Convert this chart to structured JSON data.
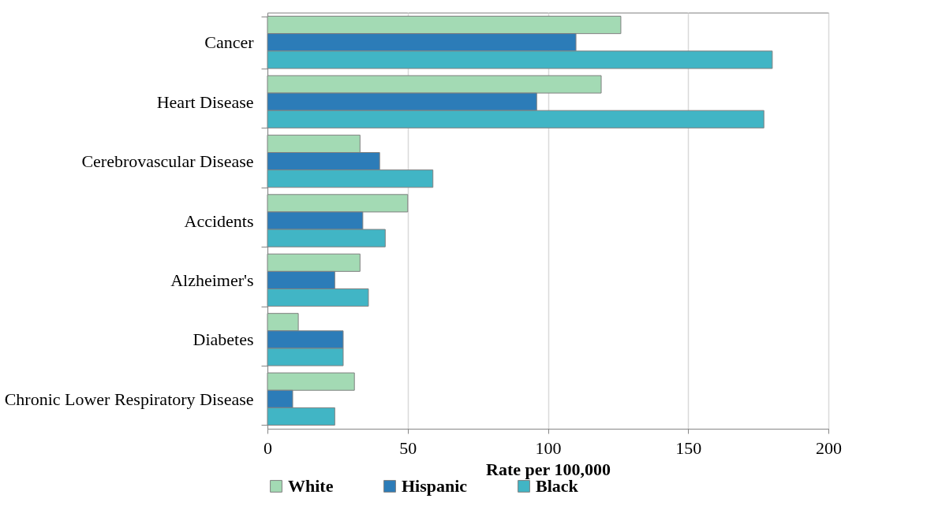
{
  "chart_data": {
    "type": "bar",
    "orientation": "horizontal",
    "xlabel": "Rate per 100,000",
    "categories": [
      "Cancer",
      "Heart Disease",
      "Cerebrovascular Disease",
      "Accidents",
      "Alzheimer's ",
      "Diabetes",
      "Chronic Lower Respiratory Disease"
    ],
    "series": [
      {
        "name": "White",
        "color": "#a3dab4",
        "values": [
          126,
          119,
          33,
          50,
          33,
          11,
          31
        ]
      },
      {
        "name": "Hispanic",
        "color": "#2c7cb8",
        "values": [
          110,
          96,
          40,
          34,
          24,
          27,
          9
        ]
      },
      {
        "name": "Black",
        "color": "#41b5c5",
        "values": [
          180,
          177,
          59,
          42,
          36,
          27,
          24
        ]
      }
    ],
    "xlim": [
      0,
      200
    ],
    "xticks": [
      0,
      50,
      100,
      150,
      200
    ],
    "grid": "x",
    "legend": "bottom"
  }
}
